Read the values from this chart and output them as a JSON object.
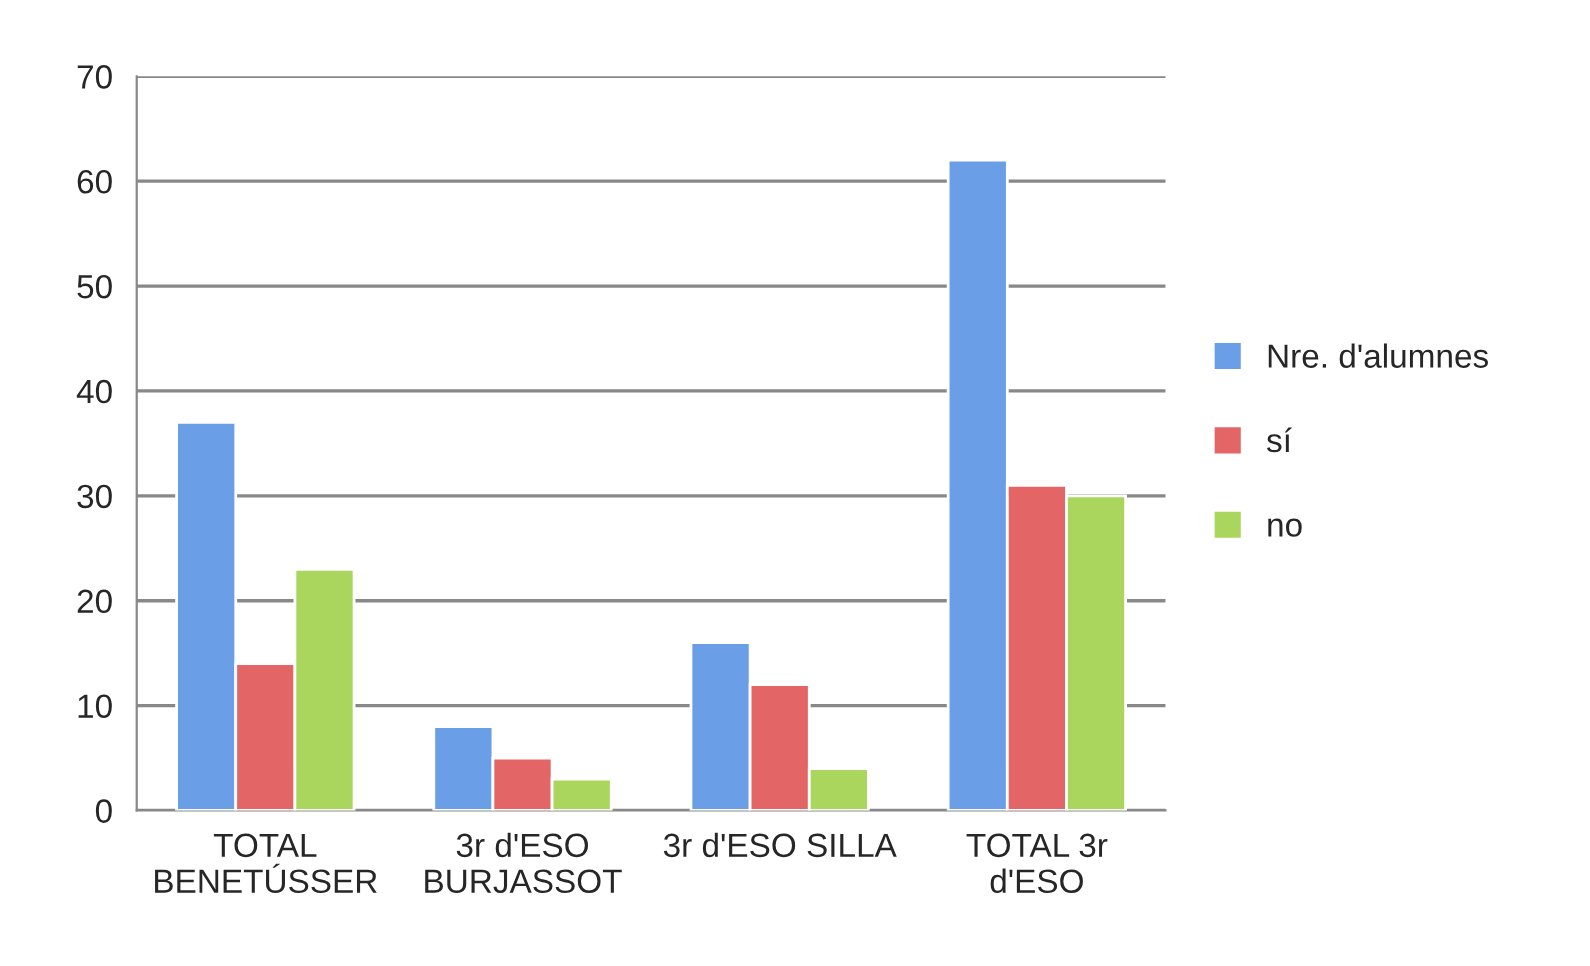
{
  "chart_data": {
    "type": "bar",
    "categories": [
      "TOTAL\nBENETÚSSER",
      "3r d'ESO\nBURJASSOT",
      "3r d'ESO SILLA",
      "TOTAL 3r\nd'ESO"
    ],
    "series": [
      {
        "name": "Nre. d'alumnes",
        "color": "#6a9ee6",
        "values": [
          37,
          8,
          16,
          62
        ]
      },
      {
        "name": "sí",
        "color": "#e46565",
        "values": [
          14,
          5,
          12,
          31
        ]
      },
      {
        "name": "no",
        "color": "#aad65e",
        "values": [
          23,
          3,
          4,
          30
        ]
      }
    ],
    "ylim": [
      0,
      70
    ],
    "yticks": [
      0,
      10,
      20,
      30,
      40,
      50,
      60,
      70
    ],
    "grid": "y",
    "legend": "right"
  }
}
